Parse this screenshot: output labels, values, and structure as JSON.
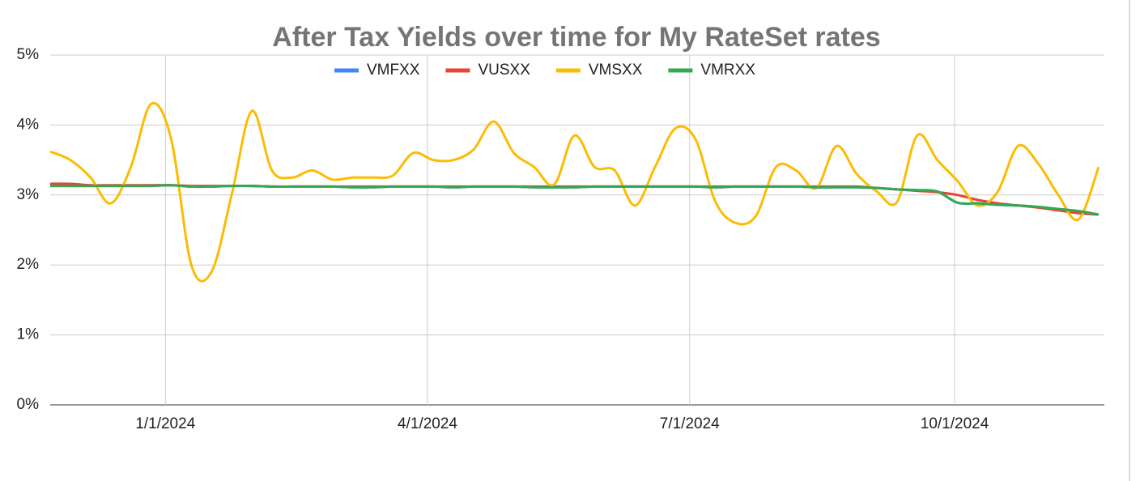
{
  "chart_data": {
    "type": "line",
    "title": "After Tax Yields over time for My RateSet rates",
    "x": [
      "11/22/2023",
      "11/29/2023",
      "12/6/2023",
      "12/13/2023",
      "12/20/2023",
      "12/27/2023",
      "1/3/2024",
      "1/10/2024",
      "1/17/2024",
      "1/24/2024",
      "1/31/2024",
      "2/7/2024",
      "2/14/2024",
      "2/21/2024",
      "2/28/2024",
      "3/6/2024",
      "3/13/2024",
      "3/20/2024",
      "3/27/2024",
      "4/3/2024",
      "4/10/2024",
      "4/17/2024",
      "4/24/2024",
      "5/1/2024",
      "5/8/2024",
      "5/15/2024",
      "5/22/2024",
      "5/29/2024",
      "6/5/2024",
      "6/12/2024",
      "6/19/2024",
      "6/26/2024",
      "7/3/2024",
      "7/10/2024",
      "7/17/2024",
      "7/24/2024",
      "7/31/2024",
      "8/7/2024",
      "8/14/2024",
      "8/21/2024",
      "8/28/2024",
      "9/4/2024",
      "9/11/2024",
      "9/18/2024",
      "9/25/2024",
      "10/2/2024",
      "10/9/2024",
      "10/16/2024",
      "10/23/2024",
      "10/30/2024",
      "11/6/2024",
      "11/13/2024",
      "11/20/2024"
    ],
    "series": [
      {
        "name": "VMFXX",
        "color": "#4285f4",
        "values": [
          3.13,
          3.13,
          3.13,
          3.13,
          3.13,
          3.13,
          3.14,
          3.12,
          3.12,
          3.13,
          3.13,
          3.12,
          3.12,
          3.12,
          3.12,
          3.11,
          3.11,
          3.12,
          3.12,
          3.12,
          3.11,
          3.12,
          3.12,
          3.12,
          3.11,
          3.11,
          3.11,
          3.12,
          3.12,
          3.12,
          3.12,
          3.12,
          3.12,
          3.11,
          3.12,
          3.12,
          3.12,
          3.12,
          3.11,
          3.11,
          3.11,
          3.1,
          3.08,
          3.07,
          3.05,
          2.89,
          2.88,
          2.86,
          2.85,
          2.83,
          2.8,
          2.77,
          2.72
        ]
      },
      {
        "name": "VUSXX",
        "color": "#ea4335",
        "values": [
          3.16,
          3.16,
          3.14,
          3.14,
          3.14,
          3.14,
          3.14,
          3.13,
          3.13,
          3.13,
          3.13,
          3.12,
          3.12,
          3.12,
          3.12,
          3.12,
          3.12,
          3.12,
          3.12,
          3.12,
          3.12,
          3.12,
          3.12,
          3.12,
          3.12,
          3.12,
          3.12,
          3.12,
          3.12,
          3.12,
          3.12,
          3.12,
          3.12,
          3.12,
          3.12,
          3.12,
          3.12,
          3.12,
          3.12,
          3.12,
          3.12,
          3.1,
          3.08,
          3.06,
          3.04,
          3.0,
          2.93,
          2.88,
          2.85,
          2.82,
          2.78,
          2.74,
          2.72
        ]
      },
      {
        "name": "VMSXX",
        "color": "#fbbc04",
        "values": [
          3.62,
          3.5,
          3.25,
          2.88,
          3.4,
          4.3,
          3.8,
          2.0,
          1.9,
          3.0,
          4.2,
          3.35,
          3.25,
          3.35,
          3.22,
          3.25,
          3.25,
          3.28,
          3.6,
          3.5,
          3.5,
          3.65,
          4.05,
          3.6,
          3.4,
          3.15,
          3.85,
          3.4,
          3.35,
          2.85,
          3.4,
          3.95,
          3.8,
          2.9,
          2.6,
          2.7,
          3.4,
          3.35,
          3.1,
          3.7,
          3.3,
          3.05,
          2.9,
          3.85,
          3.5,
          3.2,
          2.85,
          3.05,
          3.7,
          3.45,
          3.0,
          2.65,
          3.4
        ]
      },
      {
        "name": "VMRXX",
        "color": "#34a853",
        "values": [
          3.13,
          3.13,
          3.13,
          3.13,
          3.13,
          3.13,
          3.14,
          3.12,
          3.12,
          3.13,
          3.13,
          3.12,
          3.12,
          3.12,
          3.12,
          3.11,
          3.11,
          3.12,
          3.12,
          3.12,
          3.11,
          3.12,
          3.12,
          3.12,
          3.11,
          3.11,
          3.11,
          3.12,
          3.12,
          3.12,
          3.12,
          3.12,
          3.12,
          3.11,
          3.12,
          3.12,
          3.12,
          3.12,
          3.11,
          3.11,
          3.11,
          3.1,
          3.08,
          3.07,
          3.05,
          2.89,
          2.88,
          2.86,
          2.85,
          2.83,
          2.8,
          2.77,
          2.72
        ]
      }
    ],
    "xlim": [
      "11/22/2023",
      "11/22/2024"
    ],
    "xticks": [
      "1/1/2024",
      "4/1/2024",
      "7/1/2024",
      "10/1/2024"
    ],
    "ylim": [
      0,
      5
    ],
    "yticks": [
      {
        "value": 0,
        "label": "0%"
      },
      {
        "value": 1,
        "label": "1%"
      },
      {
        "value": 2,
        "label": "2%"
      },
      {
        "value": 3,
        "label": "3%"
      },
      {
        "value": 4,
        "label": "4%"
      },
      {
        "value": 5,
        "label": "5%"
      }
    ],
    "grid": true
  }
}
